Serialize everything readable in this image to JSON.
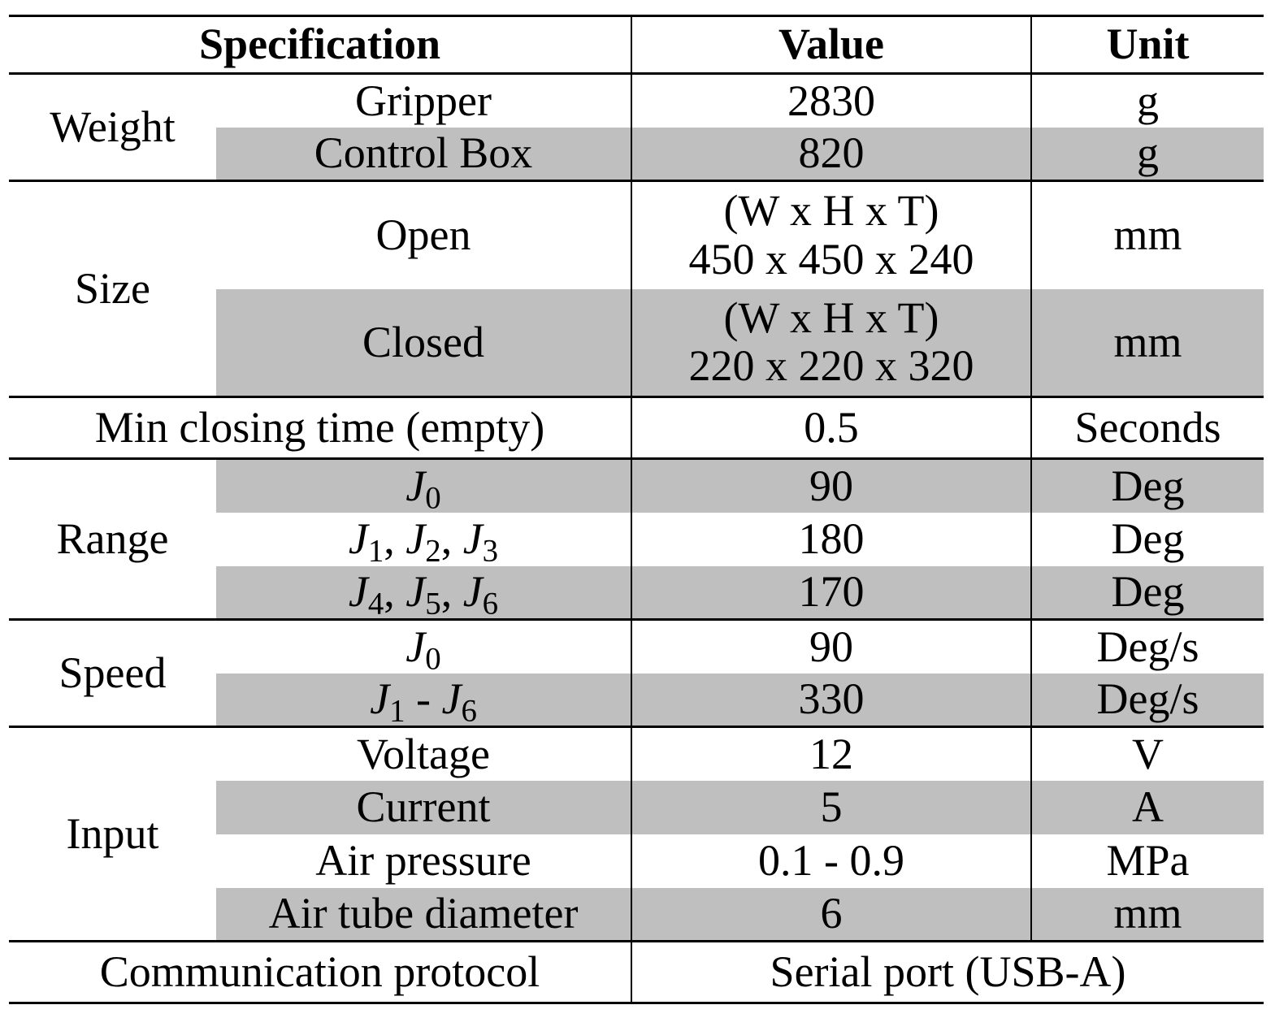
{
  "header": {
    "specification": "Specification",
    "value": "Value",
    "unit": "Unit"
  },
  "weight": {
    "label": "Weight",
    "gripper": {
      "name": "Gripper",
      "value": "2830",
      "unit": "g"
    },
    "control_box": {
      "name": "Control Box",
      "value": "820",
      "unit": "g"
    }
  },
  "size": {
    "label": "Size",
    "open": {
      "name": "Open",
      "value_line1": "(W x H x T)",
      "value_line2": "450 x 450 x 240",
      "unit": "mm"
    },
    "closed": {
      "name": "Closed",
      "value_line1": "(W x H x T)",
      "value_line2": "220 x 220 x 320",
      "unit": "mm"
    }
  },
  "closing_time": {
    "label": "Min closing time (empty)",
    "value": "0.5",
    "unit": "Seconds"
  },
  "range": {
    "label": "Range",
    "rows": [
      {
        "joints": [
          {
            "j": "J",
            "sub": "0"
          }
        ],
        "sep": ", ",
        "value": "90",
        "unit": "Deg"
      },
      {
        "joints": [
          {
            "j": "J",
            "sub": "1"
          },
          {
            "j": "J",
            "sub": "2"
          },
          {
            "j": "J",
            "sub": "3"
          }
        ],
        "sep": ", ",
        "value": "180",
        "unit": "Deg"
      },
      {
        "joints": [
          {
            "j": "J",
            "sub": "4"
          },
          {
            "j": "J",
            "sub": "5"
          },
          {
            "j": "J",
            "sub": "6"
          }
        ],
        "sep": ", ",
        "value": "170",
        "unit": "Deg"
      }
    ]
  },
  "speed": {
    "label": "Speed",
    "rows": [
      {
        "joints": [
          {
            "j": "J",
            "sub": "0"
          }
        ],
        "sep": " - ",
        "value": "90",
        "unit": "Deg/s"
      },
      {
        "joints": [
          {
            "j": "J",
            "sub": "1"
          },
          {
            "j": "J",
            "sub": "6"
          }
        ],
        "sep": " - ",
        "value": "330",
        "unit": "Deg/s"
      }
    ]
  },
  "input": {
    "label": "Input",
    "voltage": {
      "name": "Voltage",
      "value": "12",
      "unit": "V"
    },
    "current": {
      "name": "Current",
      "value": "5",
      "unit": "A"
    },
    "air_pressure": {
      "name": "Air pressure",
      "value": "0.1 - 0.9",
      "unit": "MPa"
    },
    "air_tube": {
      "name": "Air tube diameter",
      "value": "6",
      "unit": "mm"
    }
  },
  "communication": {
    "label": "Communication protocol",
    "value": "Serial port (USB-A)"
  },
  "colors": {
    "shade": "#bfbfbf",
    "rule": "#000000"
  }
}
